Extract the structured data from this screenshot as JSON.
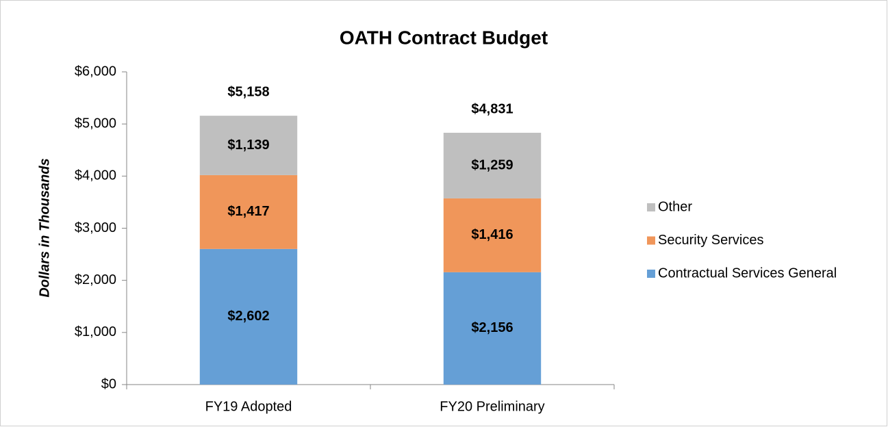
{
  "chart_data": {
    "type": "stacked-bar",
    "title": "OATH Contract Budget",
    "y_label": "Dollars in Thousands",
    "categories": [
      "FY19 Adopted",
      "FY20 Preliminary"
    ],
    "series": [
      {
        "name": "Contractual Services General",
        "color": "#659fd6",
        "values": [
          2602,
          2156
        ],
        "value_labels": [
          "$2,602",
          "$2,156"
        ]
      },
      {
        "name": "Security Services",
        "color": "#f0965a",
        "values": [
          1417,
          1416
        ],
        "value_labels": [
          "$1,417",
          "$1,416"
        ]
      },
      {
        "name": "Other",
        "color": "#bfbfbf",
        "values": [
          1139,
          1259
        ],
        "value_labels": [
          "$1,139",
          "$1,259"
        ]
      }
    ],
    "totals": [
      5158,
      4831
    ],
    "total_labels": [
      "$5,158",
      "$4,831"
    ],
    "ylim": [
      0,
      6000
    ],
    "yticks": [
      {
        "value": 0,
        "label": "$0"
      },
      {
        "value": 1000,
        "label": "$1,000"
      },
      {
        "value": 2000,
        "label": "$2,000"
      },
      {
        "value": 3000,
        "label": "$3,000"
      },
      {
        "value": 4000,
        "label": "$4,000"
      },
      {
        "value": 5000,
        "label": "$5,000"
      },
      {
        "value": 6000,
        "label": "$6,000"
      }
    ],
    "grid": false,
    "legend": "right"
  }
}
